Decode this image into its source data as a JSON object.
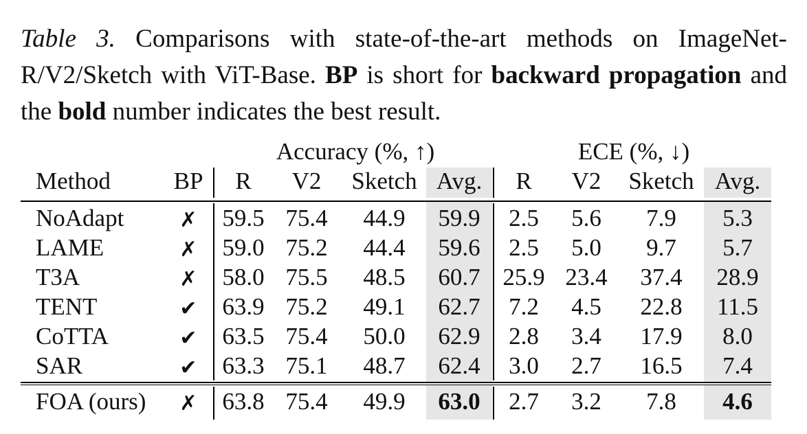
{
  "caption": {
    "label": "Table 3.",
    "text1": " Comparisons with state-of-the-art methods on ImageNet-R/V2/Sketch with ViT-Base. ",
    "bp": "BP",
    "text2": " is short for ",
    "bp_full": "backward propagation",
    "text3": " and the ",
    "bold_word": "bold",
    "text4": " number indicates the best result."
  },
  "table": {
    "group_headers": [
      "Accuracy (%, ↑)",
      "ECE (%, ↓)"
    ],
    "columns": [
      "Method",
      "BP",
      "R",
      "V2",
      "Sketch",
      "Avg.",
      "R",
      "V2",
      "Sketch",
      "Avg."
    ],
    "rows": [
      [
        "NoAdapt",
        "✗",
        "59.5",
        "75.4",
        "44.9",
        "59.9",
        "2.5",
        "5.6",
        "7.9",
        "5.3"
      ],
      [
        "LAME",
        "✗",
        "59.0",
        "75.2",
        "44.4",
        "59.6",
        "2.5",
        "5.0",
        "9.7",
        "5.7"
      ],
      [
        "T3A",
        "✗",
        "58.0",
        "75.5",
        "48.5",
        "60.7",
        "25.9",
        "23.4",
        "37.4",
        "28.9"
      ],
      [
        "TENT",
        "✔",
        "63.9",
        "75.2",
        "49.1",
        "62.7",
        "7.2",
        "4.5",
        "22.8",
        "11.5"
      ],
      [
        "CoTTA",
        "✔",
        "63.5",
        "75.4",
        "50.0",
        "62.9",
        "2.8",
        "3.4",
        "17.9",
        "8.0"
      ],
      [
        "SAR",
        "✔",
        "63.3",
        "75.1",
        "48.7",
        "62.4",
        "3.0",
        "2.7",
        "16.5",
        "7.4"
      ]
    ],
    "ours": [
      "FOA (ours)",
      "✗",
      "63.8",
      "75.4",
      "49.9",
      "63.0",
      "2.7",
      "3.2",
      "7.8",
      "4.6"
    ]
  }
}
